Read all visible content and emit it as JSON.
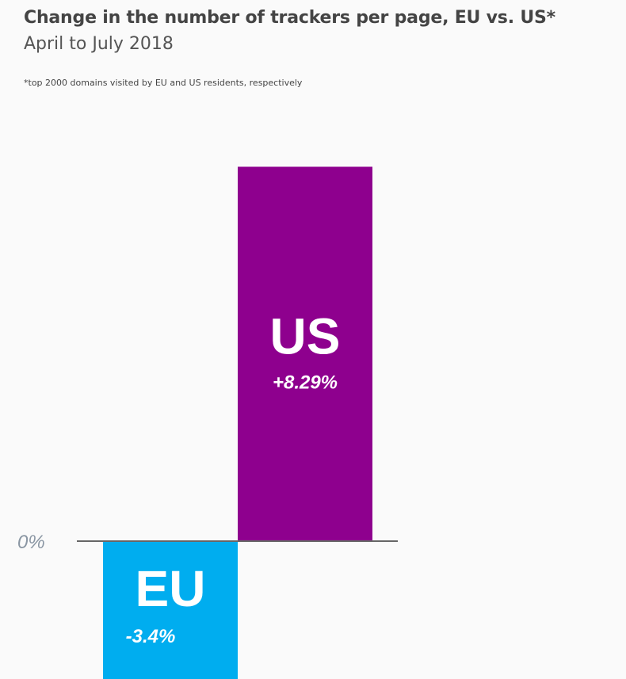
{
  "header": {
    "title": "Change in the number of trackers per page, EU vs. US*",
    "subtitle": "April to July 2018",
    "footnote": "*top 2000 domains visited by EU and US residents, respectively"
  },
  "chart_data": {
    "type": "bar",
    "categories": [
      "EU",
      "US"
    ],
    "values": [
      -3.4,
      8.29
    ],
    "value_labels": [
      "-3.4%",
      "+8.29%"
    ],
    "colors": [
      "#00adef",
      "#8e008e"
    ],
    "baseline_label": "0%",
    "baseline_color": "#666666",
    "ylim": [
      -3.4,
      8.29
    ],
    "grid": false,
    "legend": "none"
  }
}
